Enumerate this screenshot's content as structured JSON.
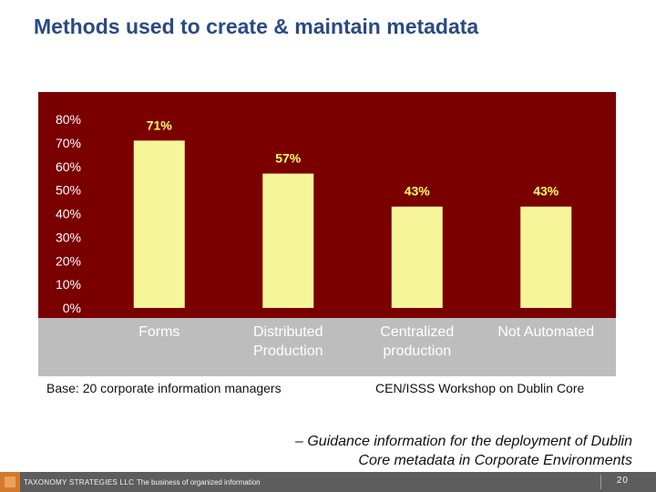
{
  "slide": {
    "title": "Methods used to create & maintain metadata",
    "base_note": "Base: 20 corporate information managers",
    "source_note": "CEN/ISSS Workshop on Dublin Core",
    "guidance_line1": "– Guidance information for the deployment of Dublin",
    "guidance_line2": "Core metadata in Corporate Environments"
  },
  "footer": {
    "company": "TAXONOMY STRATEGIES LLC",
    "tagline": "The business of organized information",
    "page_number": "20"
  },
  "colors": {
    "plot_background": "#7a0000",
    "frame_background": "#bdbdbd",
    "bar_fill": "#f7f59a",
    "data_label": "#ffff66",
    "axis_text": "#ffffff",
    "title": "#2a4a86"
  },
  "chart_data": {
    "type": "bar",
    "categories": [
      [
        "Forms"
      ],
      [
        "Distributed",
        "Production"
      ],
      [
        "Centralized",
        "production"
      ],
      [
        "Not Automated"
      ]
    ],
    "values": [
      71,
      57,
      43,
      43
    ],
    "data_labels": [
      "71%",
      "57%",
      "43%",
      "43%"
    ],
    "y_ticks": [
      "0%",
      "10%",
      "20%",
      "30%",
      "40%",
      "50%",
      "60%",
      "70%",
      "80%"
    ],
    "ylim": [
      0,
      80
    ],
    "grid": false,
    "title": "",
    "xlabel": "",
    "ylabel": ""
  }
}
